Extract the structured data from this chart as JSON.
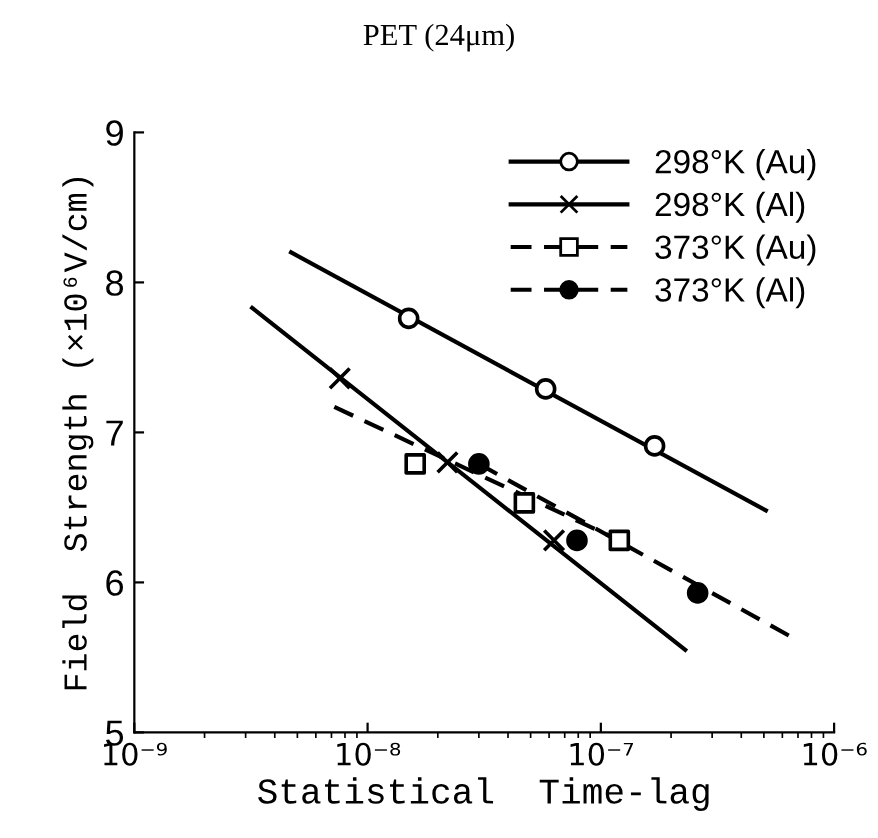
{
  "chart_data": {
    "type": "line",
    "title": "PET (24μm)",
    "xlabel": "Statistical  Time-lag",
    "ylabel": "Field  Strength (×10⁶V/cm)",
    "log": "x",
    "xlim": [
      1e-09,
      1e-06
    ],
    "xticks": [
      {
        "value": 1e-09,
        "label": "10⁻⁹"
      },
      {
        "value": 1e-08,
        "label": "10⁻⁸"
      },
      {
        "value": 1e-07,
        "label": "10⁻⁷"
      },
      {
        "value": 1e-06,
        "label": "10⁻⁶"
      }
    ],
    "ylim": [
      5,
      9
    ],
    "yticks": [
      5,
      6,
      7,
      8,
      9
    ],
    "grid": false,
    "legend": "top right",
    "series": [
      {
        "name": "298°K (Au)",
        "color": "#000000",
        "line_style": "solid",
        "marker": "none",
        "x": [
          4.7e-09,
          5.1e-07
        ],
        "values": [
          8.2,
          6.48
        ]
      },
      {
        "type": "scatter",
        "color": "#000000",
        "marker": "circle",
        "x": [
          1.5e-08,
          5.8e-08,
          1.7e-07
        ],
        "values": [
          7.76,
          7.29,
          6.91
        ]
      },
      {
        "name": "298°K (Al)",
        "color": "#000000",
        "line_style": "solid",
        "marker": "none",
        "x": [
          3.2e-09,
          2.3e-07
        ],
        "values": [
          7.83,
          5.55
        ]
      },
      {
        "type": "scatter",
        "color": "#000000",
        "marker": "cross",
        "x": [
          7.6e-09,
          2.2e-08,
          6.3e-08
        ],
        "values": [
          7.36,
          6.8,
          6.28
        ]
      },
      {
        "name": "373°K (Au)",
        "color": "#000000",
        "line_style": "dashed",
        "marker": "none",
        "x": [
          7.2e-09,
          1.2e-07
        ],
        "values": [
          7.17,
          6.28
        ]
      },
      {
        "type": "scatter",
        "color": "#000000",
        "marker": "square",
        "x": [
          1.6e-08,
          4.7e-08,
          1.2e-07
        ],
        "values": [
          6.79,
          6.53,
          6.28
        ]
      },
      {
        "name": "373°K (Al)",
        "color": "#000000",
        "line_style": "dashed",
        "marker": "none",
        "x": [
          3e-08,
          6.5e-07
        ],
        "values": [
          6.79,
          5.64
        ]
      },
      {
        "type": "scatter",
        "color": "#000000",
        "marker": "dot",
        "x": [
          3e-08,
          7.9e-08,
          2.6e-07
        ],
        "values": [
          6.79,
          6.28,
          5.93
        ]
      }
    ]
  }
}
